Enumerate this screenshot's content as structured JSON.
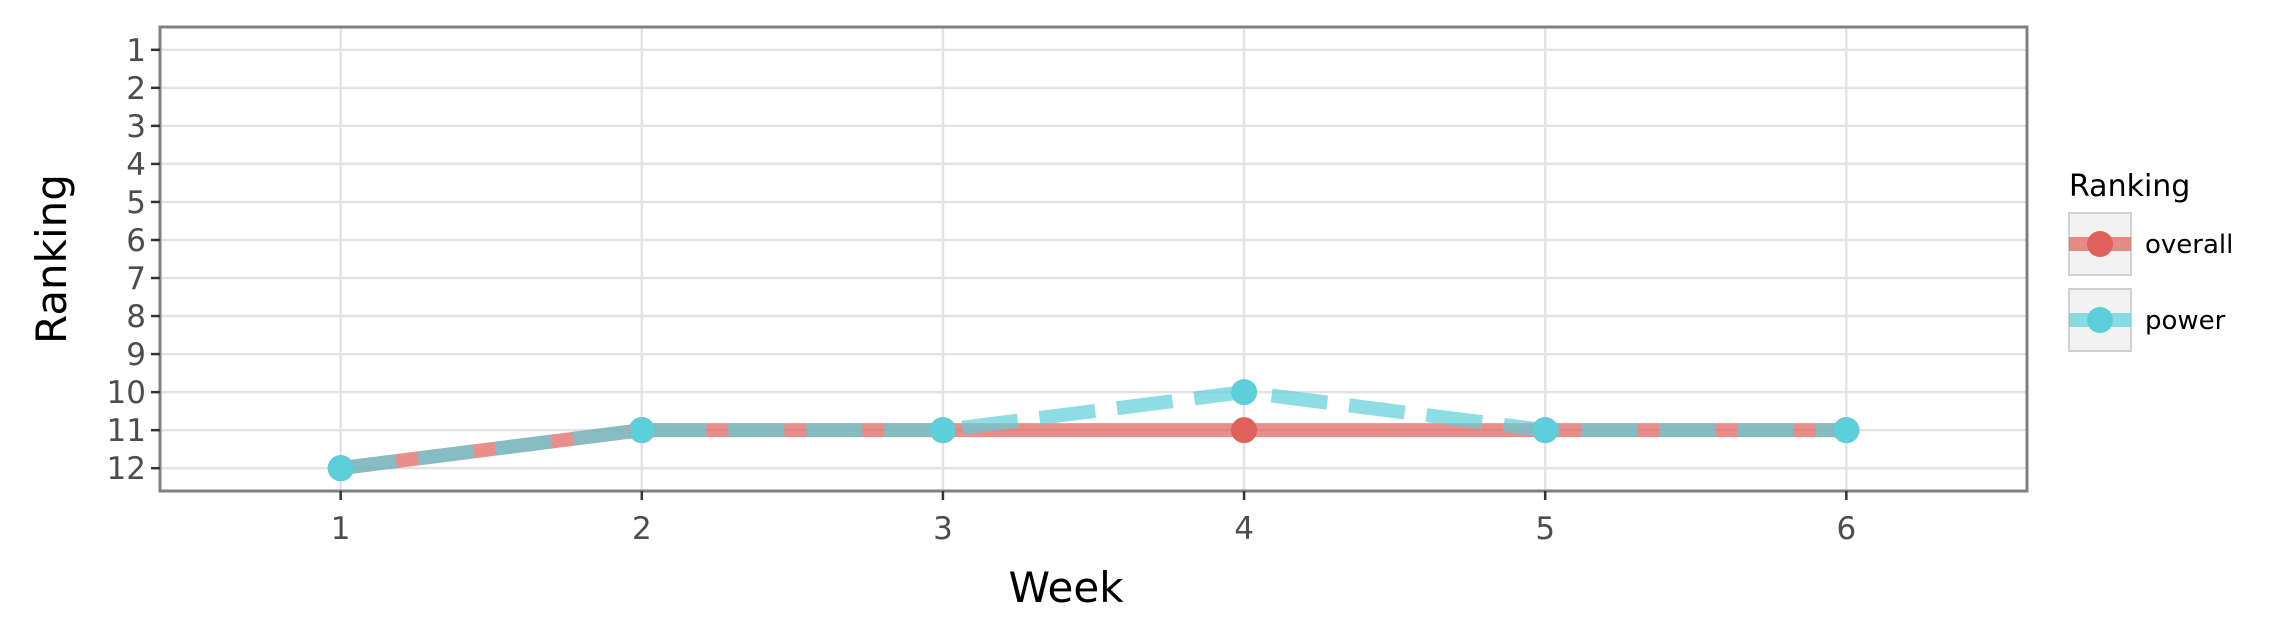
{
  "chart_data": {
    "type": "line",
    "title": "",
    "xlabel": "Week",
    "ylabel": "Ranking",
    "x": [
      1,
      2,
      3,
      4,
      5,
      6
    ],
    "x_ticks": [
      "1",
      "2",
      "3",
      "4",
      "5",
      "6"
    ],
    "y_ticks": [
      "1",
      "2",
      "3",
      "4",
      "5",
      "6",
      "7",
      "8",
      "9",
      "10",
      "11",
      "12"
    ],
    "xlim": [
      0.4,
      6.6
    ],
    "ylim": [
      12.6,
      0.4
    ],
    "y_reversed": true,
    "grid": true,
    "legend": {
      "title": "Ranking",
      "position": "right"
    },
    "series": [
      {
        "name": "overall",
        "values": [
          12,
          11,
          11,
          11,
          11,
          11
        ],
        "color": "#e0605a",
        "line_style": "solid"
      },
      {
        "name": "power",
        "values": [
          12,
          11,
          11,
          10,
          11,
          11
        ],
        "color": "#5ccfda",
        "line_style": "dashed"
      }
    ]
  }
}
